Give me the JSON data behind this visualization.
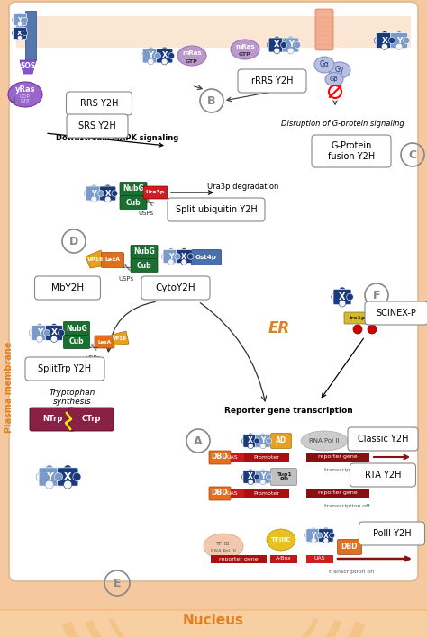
{
  "bg_outer": "#F5C8A0",
  "bg_inner": "#FFFFFF",
  "puzzle_dark": "#1A3A7C",
  "puzzle_mid": "#4A6FAA",
  "puzzle_light": "#7A9ACA",
  "green_dark": "#1A7030",
  "green_light": "#2D9040",
  "yellow_gold": "#E8A020",
  "orange_box": "#E07020",
  "purple_sos": "#8855CC",
  "purple_yras": "#9966CC",
  "purple_mras": "#BB99CC",
  "red_bar": "#CC2020",
  "dark_red": "#991010",
  "nucleus_label_color": "#E08020",
  "er_label_color": "#E08020",
  "plasma_label_color": "#E08020",
  "section_labels": {
    "classic_y2h": "Classic Y2H",
    "rta_y2h": "RTA Y2H",
    "polii_y2h": "PolII Y2H",
    "rrs_y2h": "RRS Y2H",
    "rrrs_y2h": "rRRS Y2H",
    "srs_y2h": "SRS Y2H",
    "g_protein": "G-Protein\nfusion Y2H",
    "disrupt_g": "Disruption of G-protein signaling",
    "downstream": "Downstream MAPK signaling",
    "split_ub": "Split ubiquitin Y2H",
    "ura3p": "Ura3p degradation",
    "mby2h": "MbY2H",
    "cytoy2h": "CytoY2H",
    "splittrp": "SplitTrp Y2H",
    "tryptophan": "Tryptophan\nsynthesis",
    "reporter": "Reporter gene transcription",
    "scinex": "SCINEX-P",
    "nucleus": "Nucleus",
    "er": "ER",
    "plasma": "Plasma membrane"
  }
}
